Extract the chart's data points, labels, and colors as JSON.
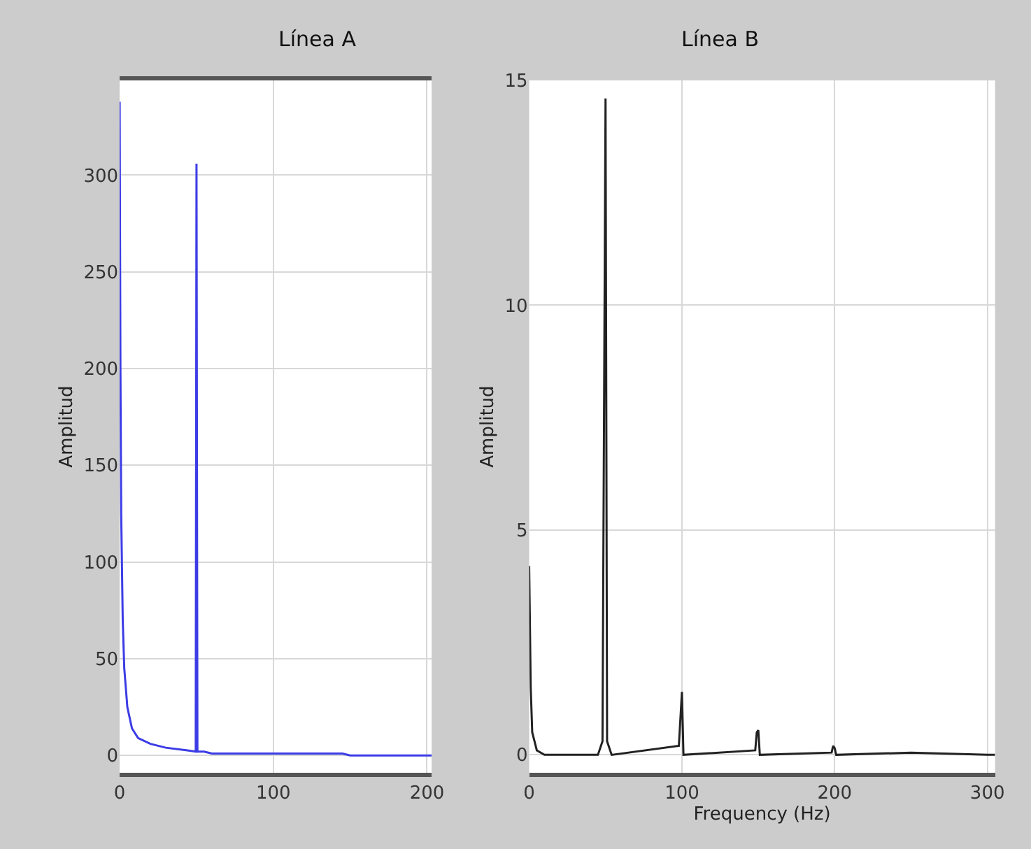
{
  "chart_data": [
    {
      "type": "line",
      "title": "Línea A",
      "ylabel": "Amplitud",
      "xlim": [
        0,
        203
      ],
      "ylim": [
        -9,
        349
      ],
      "xticks": [
        0,
        100,
        200
      ],
      "yticks": [
        0,
        50,
        100,
        150,
        200,
        250,
        300
      ],
      "grid": true,
      "series": [
        {
          "color": "#3c3ce6",
          "x": [
            0,
            0.5,
            1,
            2,
            3,
            5,
            8,
            12,
            20,
            30,
            45,
            49.5,
            50,
            50.3,
            50.6,
            55,
            60,
            100,
            145,
            150,
            203
          ],
          "values": [
            338,
            200,
            125,
            70,
            45,
            25,
            14,
            9,
            6,
            4,
            2.5,
            2,
            306,
            155,
            2,
            2,
            1,
            1,
            1,
            0,
            0
          ]
        }
      ]
    },
    {
      "type": "line",
      "title": "Línea B",
      "xlabel": "Frequency (Hz)",
      "ylabel": "Amplitud",
      "xlim": [
        0,
        305
      ],
      "ylim": [
        -0.4,
        15
      ],
      "xticks": [
        0,
        100,
        200,
        300
      ],
      "yticks": [
        0,
        5,
        10,
        15
      ],
      "grid": true,
      "series": [
        {
          "color": "#222222",
          "x": [
            0,
            1,
            2,
            5,
            10,
            45,
            48,
            49,
            50,
            51,
            54,
            98,
            99,
            100,
            101,
            148,
            149,
            150,
            151,
            198,
            199,
            200,
            201,
            250,
            300,
            305
          ],
          "values": [
            4.2,
            1.5,
            0.5,
            0.1,
            0,
            0,
            0.3,
            7.5,
            14.6,
            0.3,
            0,
            0.2,
            0.8,
            1.4,
            0,
            0.1,
            0.5,
            0.55,
            0,
            0.05,
            0.2,
            0.15,
            0,
            0.05,
            0,
            0
          ]
        }
      ]
    }
  ]
}
